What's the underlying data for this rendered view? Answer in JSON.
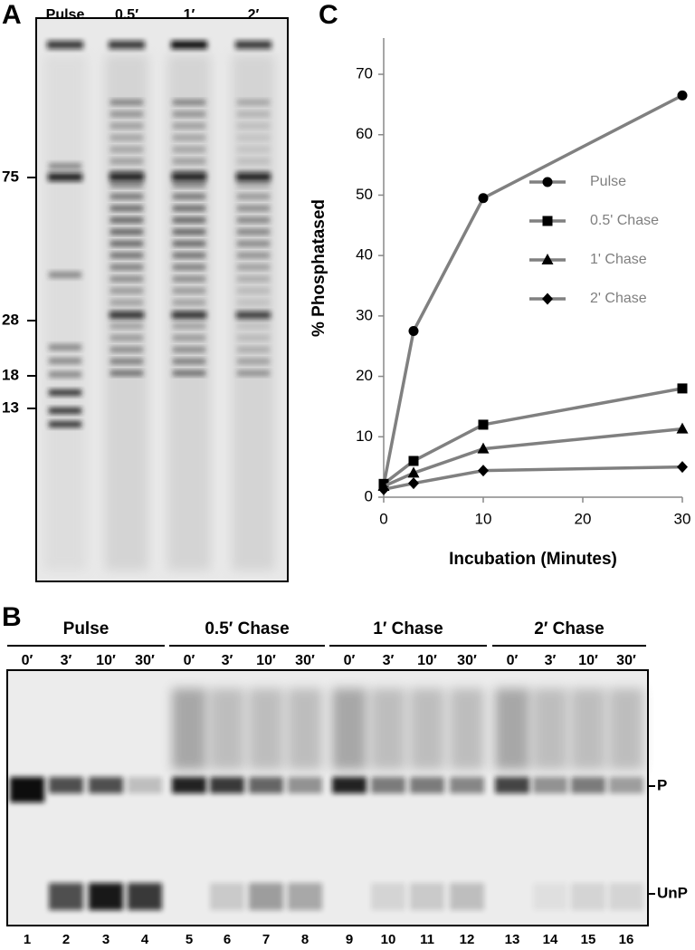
{
  "panel_a": {
    "label": "A",
    "lanes": [
      "Pulse",
      "0.5′",
      "1′",
      "2′"
    ],
    "size_markers": [
      "75",
      "28",
      "18",
      "13"
    ]
  },
  "panel_b": {
    "label": "B",
    "groups": [
      {
        "name": "Pulse",
        "times": [
          "0′",
          "3′",
          "10′",
          "30′"
        ]
      },
      {
        "name": "0.5′ Chase",
        "times": [
          "0′",
          "3′",
          "10′",
          "30′"
        ]
      },
      {
        "name": "1′ Chase",
        "times": [
          "0′",
          "3′",
          "10′",
          "30′"
        ]
      },
      {
        "name": "2′ Chase",
        "times": [
          "0′",
          "3′",
          "10′",
          "30′"
        ]
      }
    ],
    "lane_numbers": [
      "1",
      "2",
      "3",
      "4",
      "5",
      "6",
      "7",
      "8",
      "9",
      "10",
      "11",
      "12",
      "13",
      "14",
      "15",
      "16"
    ],
    "band_labels": [
      "P",
      "UnP"
    ]
  },
  "chart_data": {
    "type": "line",
    "panel_label": "C",
    "x_label": "Incubation (Minutes)",
    "y_label": "% Phosphatased",
    "x": [
      0,
      3,
      10,
      30
    ],
    "series": [
      {
        "name": "Pulse",
        "color": "#808080",
        "marker": "circle",
        "values": [
          2,
          27.5,
          49.5,
          66.5
        ]
      },
      {
        "name": "0.5' Chase",
        "color": "#808080",
        "marker": "square",
        "values": [
          2.2,
          6,
          12,
          18
        ]
      },
      {
        "name": "1' Chase",
        "color": "#808080",
        "marker": "triangle",
        "values": [
          1.8,
          4,
          8,
          11.3
        ]
      },
      {
        "name": "2' Chase",
        "color": "#808080",
        "marker": "diamond",
        "values": [
          1.3,
          2.3,
          4.4,
          5
        ]
      }
    ],
    "xlim": [
      0,
      30
    ],
    "xticks": [
      0,
      10,
      20,
      30
    ],
    "ylim": [
      0,
      76
    ],
    "yticks": [
      0,
      10,
      20,
      30,
      40,
      50,
      60,
      70
    ],
    "grid": false,
    "legend": "right"
  }
}
